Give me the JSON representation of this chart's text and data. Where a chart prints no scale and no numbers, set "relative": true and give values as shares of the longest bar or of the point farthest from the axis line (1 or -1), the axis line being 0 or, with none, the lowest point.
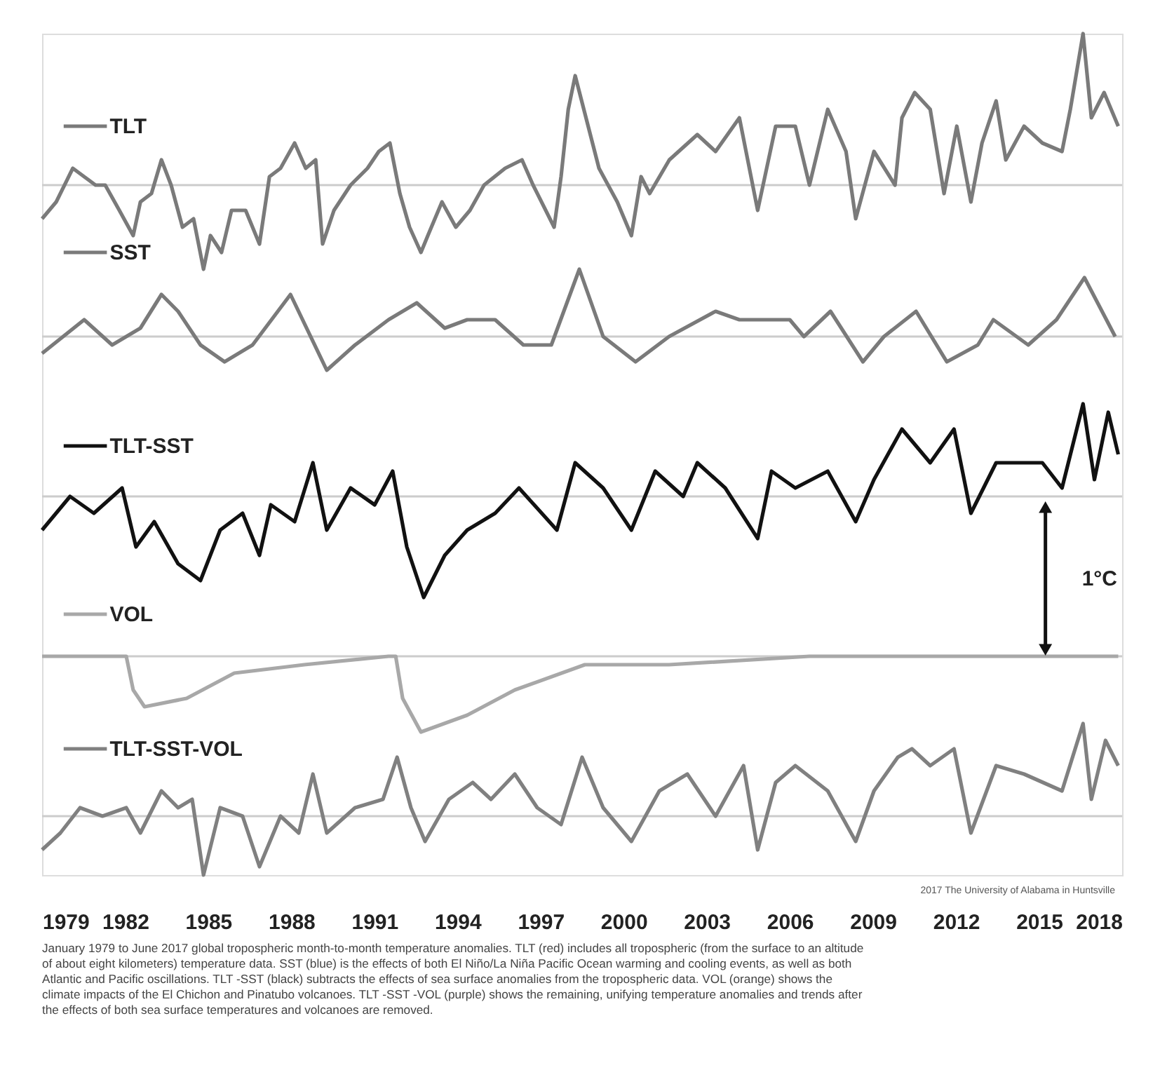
{
  "chart_data": {
    "type": "line",
    "relative": true,
    "legend": "top left",
    "xlim": [
      1979,
      2018
    ],
    "xticks": [
      1979,
      1982,
      1985,
      1988,
      1991,
      1994,
      1997,
      2000,
      2003,
      2006,
      2009,
      2012,
      2015,
      2018
    ],
    "series": [
      {
        "name": "TLT",
        "color": "#7a7a7a",
        "x": [
          1979.0,
          1979.51,
          1980.11,
          1980.52,
          1980.93,
          1981.28,
          1981.79,
          1982.29,
          1982.55,
          1982.95,
          1983.31,
          1983.66,
          1984.07,
          1984.47,
          1984.83,
          1985.08,
          1985.48,
          1985.84,
          1986.35,
          1986.85,
          1987.21,
          1987.61,
          1988.12,
          1988.52,
          1988.88,
          1989.13,
          1989.54,
          1990.14,
          1990.75,
          1991.16,
          1991.56,
          1991.92,
          1992.27,
          1992.68,
          1992.93,
          1993.44,
          1993.94,
          1994.45,
          1994.96,
          1995.72,
          1996.33,
          1996.73,
          1997.49,
          1997.74,
          1998.0,
          1998.25,
          1999.11,
          1999.77,
          2000.28,
          2000.63,
          2000.94,
          2001.65,
          2002.66,
          2003.32,
          2004.18,
          2004.84,
          2005.49,
          2006.2,
          2006.71,
          2007.37,
          2008.03,
          2008.38,
          2009.04,
          2009.8,
          2010.05,
          2010.51,
          2011.07,
          2011.57,
          2012.03,
          2012.54,
          2012.94,
          2013.45,
          2013.8,
          2014.46,
          2015.12,
          2015.83,
          2016.13,
          2016.59,
          2016.89,
          2017.35,
          2017.86
        ],
        "values": [
          0.78,
          0.8,
          0.84,
          0.83,
          0.82,
          0.82,
          0.79,
          0.76,
          0.8,
          0.81,
          0.85,
          0.82,
          0.77,
          0.78,
          0.72,
          0.76,
          0.74,
          0.79,
          0.79,
          0.75,
          0.83,
          0.84,
          0.87,
          0.84,
          0.85,
          0.75,
          0.79,
          0.82,
          0.84,
          0.86,
          0.87,
          0.81,
          0.77,
          0.74,
          0.76,
          0.8,
          0.77,
          0.79,
          0.82,
          0.84,
          0.85,
          0.82,
          0.77,
          0.83,
          0.91,
          0.95,
          0.84,
          0.8,
          0.76,
          0.83,
          0.81,
          0.85,
          0.88,
          0.86,
          0.9,
          0.79,
          0.89,
          0.89,
          0.82,
          0.91,
          0.86,
          0.78,
          0.86,
          0.82,
          0.9,
          0.93,
          0.91,
          0.81,
          0.89,
          0.8,
          0.87,
          0.92,
          0.85,
          0.89,
          0.87,
          0.86,
          0.91,
          1.0,
          0.9,
          0.93,
          0.89
        ]
      },
      {
        "name": "SST",
        "color": "#7a7a7a",
        "x": [
          1979.0,
          1980.52,
          1981.53,
          1982.55,
          1983.31,
          1983.91,
          1984.72,
          1985.59,
          1986.6,
          1987.97,
          1989.28,
          1990.3,
          1991.51,
          1992.53,
          1993.54,
          1994.35,
          1995.36,
          1996.38,
          1997.39,
          1998.4,
          1999.26,
          2000.43,
          2001.64,
          2003.32,
          2004.18,
          2006.0,
          2006.51,
          2007.47,
          2008.64,
          2009.4,
          2010.56,
          2011.67,
          2012.79,
          2013.35,
          2014.61,
          2015.63,
          2016.64,
          2017.75
        ],
        "values": [
          0.62,
          0.66,
          0.63,
          0.65,
          0.69,
          0.67,
          0.63,
          0.61,
          0.63,
          0.69,
          0.6,
          0.63,
          0.66,
          0.68,
          0.65,
          0.66,
          0.66,
          0.63,
          0.63,
          0.72,
          0.64,
          0.61,
          0.64,
          0.67,
          0.66,
          0.66,
          0.64,
          0.67,
          0.61,
          0.64,
          0.67,
          0.61,
          0.63,
          0.66,
          0.63,
          0.66,
          0.71,
          0.64
        ]
      },
      {
        "name": "TLT-SST",
        "color": "#111111",
        "x": [
          1979.0,
          1980.01,
          1980.87,
          1981.89,
          1982.39,
          1983.05,
          1983.91,
          1984.72,
          1985.43,
          1986.24,
          1986.85,
          1987.26,
          1988.12,
          1988.78,
          1989.28,
          1990.14,
          1991.01,
          1991.66,
          1992.17,
          1992.78,
          1993.54,
          1994.35,
          1995.36,
          1996.22,
          1997.59,
          1998.25,
          1999.26,
          2000.28,
          2001.14,
          2002.15,
          2002.66,
          2003.67,
          2004.84,
          2005.34,
          2006.2,
          2007.37,
          2008.38,
          2009.04,
          2010.05,
          2011.07,
          2011.93,
          2012.54,
          2013.45,
          2015.12,
          2015.83,
          2016.59,
          2017.0,
          2017.5,
          2017.86
        ],
        "values": [
          0.41,
          0.45,
          0.43,
          0.46,
          0.39,
          0.42,
          0.37,
          0.35,
          0.41,
          0.43,
          0.38,
          0.44,
          0.42,
          0.49,
          0.41,
          0.46,
          0.44,
          0.48,
          0.39,
          0.33,
          0.38,
          0.41,
          0.43,
          0.46,
          0.41,
          0.49,
          0.46,
          0.41,
          0.48,
          0.45,
          0.49,
          0.46,
          0.4,
          0.48,
          0.46,
          0.48,
          0.42,
          0.47,
          0.53,
          0.49,
          0.53,
          0.43,
          0.49,
          0.49,
          0.46,
          0.56,
          0.47,
          0.55,
          0.5
        ]
      },
      {
        "name": "VOL",
        "color": "#a8a8a8",
        "x": [
          1979.0,
          1982.04,
          1982.29,
          1982.7,
          1984.22,
          1985.94,
          1988.47,
          1991.51,
          1991.77,
          1992.02,
          1992.68,
          1994.35,
          1996.07,
          1998.6,
          2001.64,
          2006.71,
          2017.86
        ],
        "values": [
          0.26,
          0.26,
          0.22,
          0.2,
          0.21,
          0.24,
          0.25,
          0.26,
          0.26,
          0.21,
          0.17,
          0.19,
          0.22,
          0.25,
          0.25,
          0.26,
          0.26
        ]
      },
      {
        "name": "TLT-SST-VOL",
        "color": "#808080",
        "x": [
          1979.0,
          1979.66,
          1980.37,
          1981.18,
          1982.04,
          1982.55,
          1983.31,
          1983.91,
          1984.42,
          1984.83,
          1985.43,
          1986.24,
          1986.85,
          1987.61,
          1988.27,
          1988.78,
          1989.28,
          1990.3,
          1991.31,
          1991.82,
          1992.32,
          1992.83,
          1993.69,
          1994.55,
          1995.21,
          1996.07,
          1996.88,
          1997.74,
          1998.5,
          1999.26,
          2000.28,
          2001.29,
          2002.3,
          2003.32,
          2004.33,
          2004.84,
          2005.49,
          2006.2,
          2007.37,
          2008.38,
          2009.04,
          2009.9,
          2010.41,
          2011.07,
          2011.93,
          2012.54,
          2013.45,
          2014.46,
          2015.83,
          2016.59,
          2016.89,
          2017.4,
          2017.86
        ],
        "values": [
          0.03,
          0.05,
          0.08,
          0.07,
          0.08,
          0.05,
          0.1,
          0.08,
          0.09,
          0.0,
          0.08,
          0.07,
          0.01,
          0.07,
          0.05,
          0.12,
          0.05,
          0.08,
          0.09,
          0.14,
          0.08,
          0.04,
          0.09,
          0.11,
          0.09,
          0.12,
          0.08,
          0.06,
          0.14,
          0.08,
          0.04,
          0.1,
          0.12,
          0.07,
          0.13,
          0.03,
          0.11,
          0.13,
          0.1,
          0.04,
          0.1,
          0.14,
          0.15,
          0.13,
          0.15,
          0.05,
          0.13,
          0.12,
          0.1,
          0.18,
          0.09,
          0.16,
          0.13
        ]
      }
    ],
    "ref_lines": [
      {
        "axis": "y",
        "value": 0.82,
        "color": "#cccccc"
      },
      {
        "axis": "y",
        "value": 0.64,
        "color": "#cccccc"
      },
      {
        "axis": "y",
        "value": 0.45,
        "color": "#cccccc"
      },
      {
        "axis": "y",
        "value": 0.26,
        "color": "#cccccc"
      },
      {
        "axis": "y",
        "value": 0.07,
        "color": "#cccccc"
      }
    ],
    "annotations": [
      "1°C",
      "2017 The University of Alabama in Huntsville",
      "January 1979 to June 2017 global tropospheric month-to-month temperature anomalies. TLT (red) includes all tropospheric (from the surface to an altitude of about eight kilometers) temperature data. SST (blue) is the effects of both El Niño/La Niña Pacific Ocean warming and cooling events, as well as both Atlantic and Pacific oscillations. TLT -SST (black) subtracts the effects of sea surface anomalies from the tropospheric data. VOL (orange) shows the climate impacts of the El Chichon and Pinatubo volcanoes. TLT -SST -VOL (purple) shows the remaining, unifying temperature anomalies and trends after the effects of both sea surface temperatures and volcanoes are removed."
    ]
  }
}
